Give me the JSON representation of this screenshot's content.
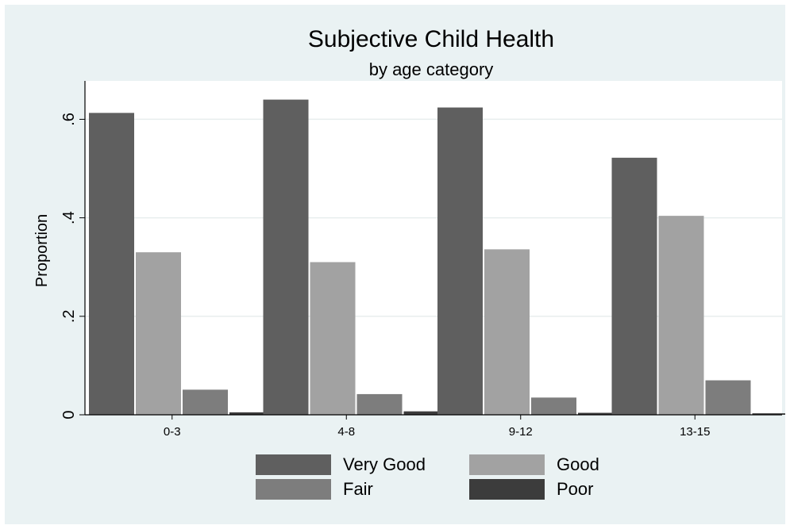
{
  "chart_data": {
    "type": "bar",
    "title": "Subjective Child Health",
    "subtitle": "by age category",
    "ylabel": "Proportion",
    "xlabel": "",
    "categories": [
      "0-3",
      "4-8",
      "9-12",
      "13-15"
    ],
    "series": [
      {
        "name": "Very Good",
        "color": "#5f5f5f",
        "values": [
          0.613,
          0.64,
          0.624,
          0.522
        ]
      },
      {
        "name": "Good",
        "color": "#a2a2a2",
        "values": [
          0.33,
          0.31,
          0.336,
          0.404
        ]
      },
      {
        "name": "Fair",
        "color": "#7d7d7d",
        "values": [
          0.051,
          0.042,
          0.035,
          0.07
        ]
      },
      {
        "name": "Poor",
        "color": "#3c3c3c",
        "values": [
          0.005,
          0.007,
          0.004,
          0.003
        ]
      }
    ],
    "ylim": [
      0,
      0.678
    ],
    "yticks": [
      0,
      0.2,
      0.4,
      0.6
    ],
    "ytick_labels": [
      "0",
      ".2",
      ".4",
      ".6"
    ],
    "grid": true,
    "legend_position": "bottom",
    "colors": {
      "background": "#eaf2f3",
      "plot_area": "#ffffff",
      "grid": "#e8eeee"
    }
  }
}
